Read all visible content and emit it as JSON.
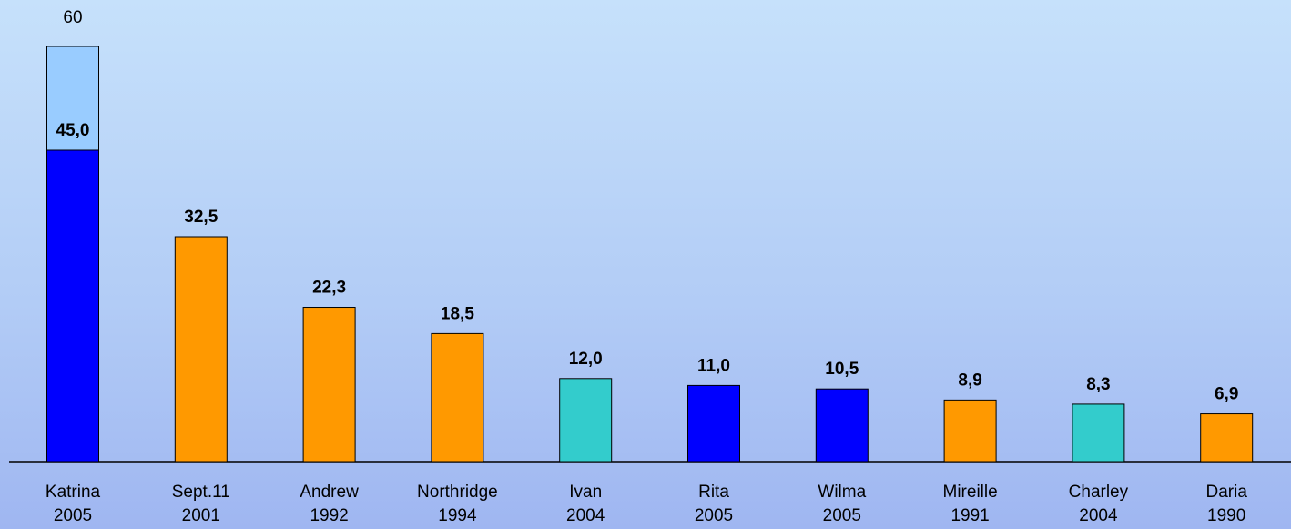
{
  "chart_data": {
    "type": "bar",
    "categories": [
      "Katrina",
      "Sept.11",
      "Andrew",
      "Northridge",
      "Ivan",
      "Rita",
      "Wilma",
      "Mireille",
      "Charley",
      "Daria"
    ],
    "years": [
      2005,
      2001,
      1992,
      1994,
      2004,
      2005,
      2005,
      1991,
      2004,
      1990
    ],
    "series": [
      {
        "values": [
          45.0,
          32.5,
          22.3,
          18.5,
          12.0,
          11.0,
          10.5,
          8.9,
          8.3,
          6.9
        ],
        "value_labels": [
          "45,0",
          "32,5",
          "22,3",
          "18,5",
          "12,0",
          "11,0",
          "10,5",
          "8,9",
          "8,3",
          "6,9"
        ],
        "colors": [
          "#0000ff",
          "#ff9900",
          "#ff9900",
          "#ff9900",
          "#33cccc",
          "#0000ff",
          "#0000ff",
          "#ff9900",
          "#33cccc",
          "#ff9900"
        ]
      },
      {
        "values": [
          60,
          null,
          null,
          null,
          null,
          null,
          null,
          null,
          null,
          null
        ],
        "color": "#99ccff"
      }
    ],
    "ylim": [
      0,
      60
    ]
  }
}
